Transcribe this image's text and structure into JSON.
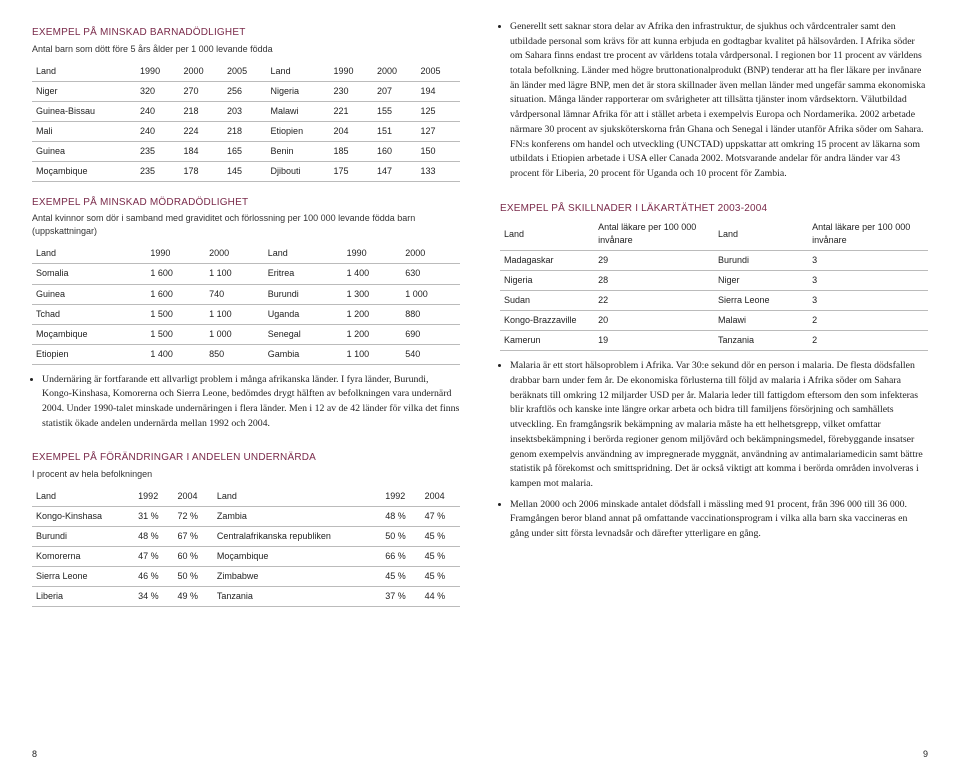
{
  "left": {
    "childMortality": {
      "title": "EXEMPEL PÅ MINSKAD BARNADÖDLIGHET",
      "subtitle": "Antal barn som dött före 5 års ålder per 1 000 levande födda",
      "cols": [
        "Land",
        "1990",
        "2000",
        "2005",
        "Land",
        "1990",
        "2000",
        "2005"
      ],
      "rows": [
        [
          "Niger",
          "320",
          "270",
          "256",
          "Nigeria",
          "230",
          "207",
          "194"
        ],
        [
          "Guinea-Bissau",
          "240",
          "218",
          "203",
          "Malawi",
          "221",
          "155",
          "125"
        ],
        [
          "Mali",
          "240",
          "224",
          "218",
          "Etiopien",
          "204",
          "151",
          "127"
        ],
        [
          "Guinea",
          "235",
          "184",
          "165",
          "Benin",
          "185",
          "160",
          "150"
        ],
        [
          "Moçambique",
          "235",
          "178",
          "145",
          "Djibouti",
          "175",
          "147",
          "133"
        ]
      ]
    },
    "maternalMortality": {
      "title": "EXEMPEL PÅ MINSKAD MÖDRADÖDLIGHET",
      "subtitle": "Antal kvinnor som dör i samband med graviditet och förlossning per 100 000 levande födda barn (uppskattningar)",
      "cols": [
        "Land",
        "1990",
        "2000",
        "Land",
        "1990",
        "2000"
      ],
      "rows": [
        [
          "Somalia",
          "1 600",
          "1 100",
          "Eritrea",
          "1 400",
          "630"
        ],
        [
          "Guinea",
          "1 600",
          "740",
          "Burundi",
          "1 300",
          "1 000"
        ],
        [
          "Tchad",
          "1 500",
          "1 100",
          "Uganda",
          "1 200",
          "880"
        ],
        [
          "Moçambique",
          "1 500",
          "1 000",
          "Senegal",
          "1 200",
          "690"
        ],
        [
          "Etiopien",
          "1 400",
          "850",
          "Gambia",
          "1 100",
          "540"
        ]
      ]
    },
    "undernourishment": {
      "bullet": "Undernäring är fortfarande ett allvarligt problem i många afrikanska länder. I fyra länder, Burundi, Kongo-Kinshasa, Komorerna och Sierra Leone, bedömdes drygt hälften av befolkningen vara undernärd 2004. Under 1990-talet minskade undernäringen i flera länder. Men i 12 av de 42 länder för vilka det finns statistik ökade andelen undernärda mellan 1992 och 2004.",
      "title": "EXEMPEL PÅ FÖRÄNDRINGAR I ANDELEN UNDERNÄRDA",
      "subtitle": "I procent av hela befolkningen",
      "cols": [
        "Land",
        "1992",
        "2004",
        "Land",
        "1992",
        "2004"
      ],
      "rows": [
        [
          "Kongo-Kinshasa",
          "31 %",
          "72 %",
          "Zambia",
          "48 %",
          "47 %"
        ],
        [
          "Burundi",
          "48 %",
          "67 %",
          "Centralafrikanska republiken",
          "50 %",
          "45 %"
        ],
        [
          "Komorerna",
          "47 %",
          "60 %",
          "Moçambique",
          "66 %",
          "45 %"
        ],
        [
          "Sierra Leone",
          "46 %",
          "50 %",
          "Zimbabwe",
          "45 %",
          "45 %"
        ],
        [
          "Liberia",
          "34 %",
          "49 %",
          "Tanzania",
          "37 %",
          "44 %"
        ]
      ]
    },
    "pageNum": "8"
  },
  "right": {
    "healthText": "Generellt sett saknar stora delar av Afrika den infrastruktur, de sjukhus och vårdcentraler samt den utbildade personal som krävs för att kunna erbjuda en godtagbar kvalitet på hälsovården. I Afrika söder om Sahara finns endast tre procent av världens totala vårdpersonal. I regionen bor 11 procent av världens totala befolkning. Länder med högre bruttonationalprodukt (BNP) tenderar att ha fler läkare per invånare än länder med lägre BNP, men det är stora skillnader även mellan länder med ungefär samma ekonomiska situation. Många länder rapporterar om svårigheter att tillsätta tjänster inom vårdsektorn. Välutbildad vårdpersonal lämnar Afrika för att i stället arbeta i exempelvis Europa och Nordamerika. 2002 arbetade närmare 30 procent av sjuksköterskorna från Ghana och Senegal i länder utanför Afrika söder om Sahara. FN:s konferens om handel och utveckling (UNCTAD) uppskattar att omkring 15 procent av läkarna som utbildats i Etiopien arbetade i USA eller Canada 2002. Motsvarande andelar för andra länder var 43 procent för Liberia, 20 procent för Uganda och 10 procent för Zambia.",
    "doctors": {
      "title": "EXEMPEL PÅ SKILLNADER I LÄKARTÄTHET 2003-2004",
      "cols": [
        "Land",
        "Antal läkare per 100 000 invånare",
        "Land",
        "Antal läkare per 100 000 invånare"
      ],
      "rows": [
        [
          "Madagaskar",
          "29",
          "Burundi",
          "3"
        ],
        [
          "Nigeria",
          "28",
          "Niger",
          "3"
        ],
        [
          "Sudan",
          "22",
          "Sierra Leone",
          "3"
        ],
        [
          "Kongo-Brazzaville",
          "20",
          "Malawi",
          "2"
        ],
        [
          "Kamerun",
          "19",
          "Tanzania",
          "2"
        ]
      ]
    },
    "malaria": {
      "b1": "Malaria är ett stort hälsoproblem i Afrika. Var 30:e sekund dör en person i malaria. De flesta dödsfallen drabbar barn under fem år. De ekonomiska förlusterna till följd av malaria i Afrika söder om Sahara beräknats till omkring 12 miljarder USD per år. Malaria leder till fattigdom eftersom den som infekteras blir kraftlös och kanske inte längre orkar arbeta och bidra till familjens försörjning och samhällets utveckling. En framgångsrik bekämpning av malaria måste ha ett helhetsgrepp, vilket omfattar insektsbekämpning i berörda regioner genom miljövård och bekämpningsmedel, förebyggande insatser genom exempelvis användning av impregnerade myggnät, användning av antimalariamedicin samt bättre statistik på förekomst och smittspridning. Det är också viktigt att komma i berörda områden involveras i kampen mot malaria.",
      "b2": "Mellan 2000 och 2006 minskade antalet dödsfall i mässling med 91 procent, från 396 000 till 36 000. Framgången beror bland annat på omfattande vaccinationsprogram i vilka alla barn ska vaccineras en gång under sitt första levnadsår och därefter ytterligare en gång."
    },
    "pageNum": "9"
  }
}
